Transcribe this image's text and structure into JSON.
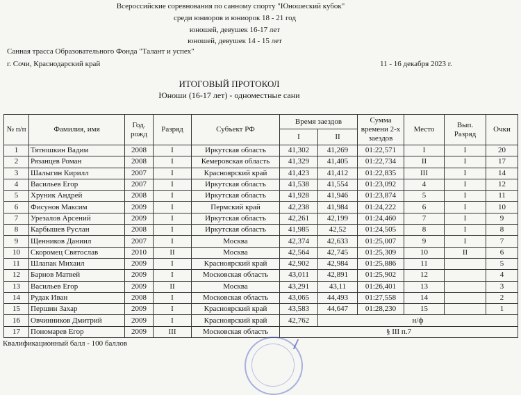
{
  "header": {
    "lines": [
      "Всероссийские соревнования по санному спорту \"Юношеский кубок\"",
      "среди юниоров и юниорок 18 - 21 год",
      "юношей, девушек 16-17 лет",
      "юношей, девушек 14 - 15  лет"
    ],
    "venue": "Санная трасса Образовательного Фонда \"Талант и успех\"",
    "city": "г. Сочи, Краснодарский край",
    "dates": "11 - 16 декабря 2023 г.",
    "title": "ИТОГОВЫЙ ПРОТОКОЛ",
    "subtitle": "Юноши (16-17 лет)  - одноместные сани"
  },
  "table": {
    "headers": {
      "num": "№ п/п",
      "name": "Фамилия, имя",
      "year": "Год. рожд",
      "rank": "Разряд",
      "region": "Субъект РФ",
      "runs": "Время заездов",
      "run1": "I",
      "run2": "II",
      "total": "Сумма времени 2-х заездов",
      "place": "Место",
      "earned_rank": "Вып. Разряд",
      "points": "Очки"
    },
    "rows": [
      {
        "num": "1",
        "name": "Тятюшкин Вадим",
        "year": "2008",
        "rank": "I",
        "region": "Иркутская область",
        "run1": "41,302",
        "run2": "41,269",
        "total": "01:22,571",
        "place": "I",
        "earned": "I",
        "points": "20"
      },
      {
        "num": "2",
        "name": "Рязанцев Роман",
        "year": "2008",
        "rank": "I",
        "region": "Кемеровская область",
        "run1": "41,329",
        "run2": "41,405",
        "total": "01:22,734",
        "place": "II",
        "earned": "I",
        "points": "17"
      },
      {
        "num": "3",
        "name": "Шалыгин Кирилл",
        "year": "2007",
        "rank": "I",
        "region": "Красноярский край",
        "run1": "41,423",
        "run2": "41,412",
        "total": "01:22,835",
        "place": "III",
        "earned": "I",
        "points": "14"
      },
      {
        "num": "4",
        "name": "Васильев Егор",
        "year": "2007",
        "rank": "I",
        "region": "Иркутская область",
        "run1": "41,538",
        "run2": "41,554",
        "total": "01:23,092",
        "place": "4",
        "earned": "I",
        "points": "12"
      },
      {
        "num": "5",
        "name": "Хруник Андрей",
        "year": "2008",
        "rank": "I",
        "region": "Иркутская область",
        "run1": "41,928",
        "run2": "41,946",
        "total": "01:23,874",
        "place": "5",
        "earned": "I",
        "points": "11"
      },
      {
        "num": "6",
        "name": "Фисунов Максим",
        "year": "2009",
        "rank": "I",
        "region": "Пермский край",
        "run1": "42,238",
        "run2": "41,984",
        "total": "01:24,222",
        "place": "6",
        "earned": "I",
        "points": "10"
      },
      {
        "num": "7",
        "name": "Урезалов Арсений",
        "year": "2009",
        "rank": "I",
        "region": "Иркутская область",
        "run1": "42,261",
        "run2": "42,199",
        "total": "01:24,460",
        "place": "7",
        "earned": "I",
        "points": "9"
      },
      {
        "num": "8",
        "name": "Карбышев Руслан",
        "year": "2008",
        "rank": "I",
        "region": "Иркутская область",
        "run1": "41,985",
        "run2": "42,52",
        "total": "01:24,505",
        "place": "8",
        "earned": "I",
        "points": "8"
      },
      {
        "num": "9",
        "name": "Щенников Даниил",
        "year": "2007",
        "rank": "I",
        "region": "Москва",
        "run1": "42,374",
        "run2": "42,633",
        "total": "01:25,007",
        "place": "9",
        "earned": "I",
        "points": "7"
      },
      {
        "num": "10",
        "name": "Скоромец Святослав",
        "year": "2010",
        "rank": "II",
        "region": "Москва",
        "run1": "42,564",
        "run2": "42,745",
        "total": "01:25,309",
        "place": "10",
        "earned": "II",
        "points": "6"
      },
      {
        "num": "11",
        "name": "Шлапак Михаил",
        "year": "2009",
        "rank": "I",
        "region": "Красноярский край",
        "run1": "42,902",
        "run2": "42,984",
        "total": "01:25,886",
        "place": "11",
        "earned": "",
        "points": "5"
      },
      {
        "num": "12",
        "name": "Барнов Матвей",
        "year": "2009",
        "rank": "I",
        "region": "Московская область",
        "run1": "43,011",
        "run2": "42,891",
        "total": "01:25,902",
        "place": "12",
        "earned": "",
        "points": "4"
      },
      {
        "num": "13",
        "name": "Васильев Егор",
        "year": "2009",
        "rank": "II",
        "region": "Москва",
        "run1": "43,291",
        "run2": "43,11",
        "total": "01:26,401",
        "place": "13",
        "earned": "",
        "points": "3"
      },
      {
        "num": "14",
        "name": "Рудак Иван",
        "year": "2008",
        "rank": "I",
        "region": "Московская область",
        "run1": "43,065",
        "run2": "44,493",
        "total": "01:27,558",
        "place": "14",
        "earned": "",
        "points": "2"
      },
      {
        "num": "15",
        "name": "Першин Захар",
        "year": "2009",
        "rank": "I",
        "region": "Красноярский край",
        "run1": "43,583",
        "run2": "44,647",
        "total": "01:28,230",
        "place": "15",
        "earned": "",
        "points": "1"
      }
    ],
    "dnf_row": {
      "num": "16",
      "name": "Овчинников Дмитрий",
      "year": "2009",
      "rank": "I",
      "region": "Красноярский край",
      "run1": "42,762",
      "note": "н/ф"
    },
    "dsq_row": {
      "num": "17",
      "name": "Пономарев Егор",
      "year": "2009",
      "rank": "III",
      "region": "Московская область",
      "note": "§ III п.7"
    }
  },
  "footer": {
    "qualification": "Квалификационный балл - 100 баллов"
  },
  "colors": {
    "stamp": "#4a5ac8",
    "paper": "#f6f6f3"
  }
}
